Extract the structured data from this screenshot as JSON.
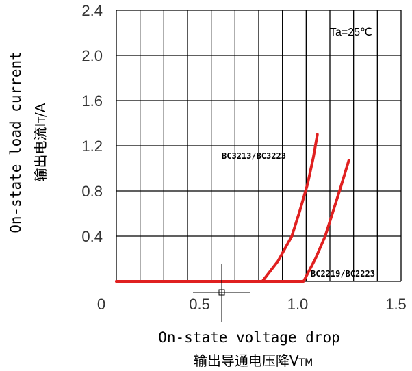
{
  "chart_data": {
    "type": "line",
    "xlabel": "On-state voltage drop",
    "xlabel_cn": "输出导通电压降V",
    "xlabel_sub": "TM",
    "ylabel": "On-state load current",
    "ylabel_cn": "输出电流I",
    "ylabel_sub": "T",
    "ylabel_unit": "/A",
    "xlim": [
      0,
      1.5
    ],
    "ylim": [
      0,
      2.4
    ],
    "x_ticks": [
      "0",
      "0.5",
      "1.0",
      "1.5"
    ],
    "y_ticks": [
      "0.4",
      "0.8",
      "1.2",
      "1.6",
      "2.0",
      "2.4"
    ],
    "annotation": "Ta=25℃",
    "grid": true,
    "line_color": "#e02020",
    "series": [
      {
        "name": "BC3213/BC3223",
        "points": [
          [
            0.0,
            0.0
          ],
          [
            0.82,
            0.0
          ],
          [
            0.9,
            0.18
          ],
          [
            0.97,
            0.4
          ],
          [
            1.01,
            0.62
          ],
          [
            1.05,
            0.86
          ],
          [
            1.08,
            1.1
          ],
          [
            1.1,
            1.3
          ]
        ]
      },
      {
        "name": "BC2219/BC2223",
        "points": [
          [
            0.0,
            0.0
          ],
          [
            1.03,
            0.0
          ],
          [
            1.09,
            0.2
          ],
          [
            1.14,
            0.4
          ],
          [
            1.18,
            0.62
          ],
          [
            1.22,
            0.84
          ],
          [
            1.26,
            1.07
          ]
        ]
      }
    ]
  }
}
